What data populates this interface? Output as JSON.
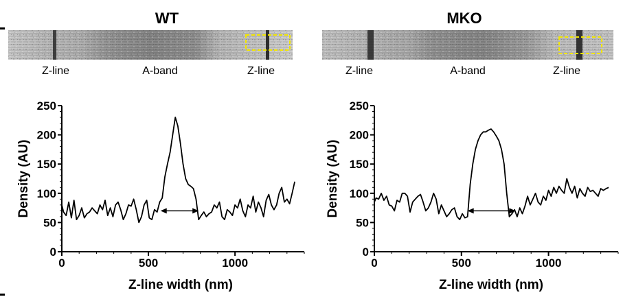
{
  "panels": [
    {
      "title": "WT",
      "image_labels": [
        "Z-line",
        "A-band",
        "Z-line"
      ],
      "highlight_color": "#f2e600"
    },
    {
      "title": "MKO",
      "image_labels": [
        "Z-line",
        "A-band",
        "Z-line"
      ],
      "highlight_color": "#f2e600"
    }
  ],
  "chart_data": [
    {
      "type": "line",
      "title": "WT",
      "xlabel": "Z-line width (nm)",
      "ylabel": "Density (AU)",
      "xlim": [
        0,
        1400
      ],
      "ylim": [
        0,
        250
      ],
      "xticks": [
        0,
        500,
        1000
      ],
      "yticks": [
        0,
        50,
        100,
        150,
        200,
        250
      ],
      "grid": false,
      "annotation": {
        "type": "double-arrow",
        "x_start": 570,
        "x_end": 790,
        "y": 70
      },
      "series": [
        {
          "name": "WT",
          "x": [
            0,
            10,
            25,
            40,
            55,
            70,
            85,
            100,
            115,
            130,
            145,
            160,
            175,
            190,
            205,
            220,
            235,
            250,
            265,
            280,
            295,
            310,
            325,
            340,
            355,
            370,
            385,
            400,
            415,
            430,
            445,
            460,
            475,
            490,
            505,
            520,
            535,
            550,
            565,
            580,
            595,
            610,
            625,
            640,
            655,
            670,
            685,
            700,
            715,
            730,
            745,
            760,
            775,
            790,
            805,
            820,
            835,
            850,
            865,
            880,
            895,
            910,
            925,
            940,
            955,
            970,
            985,
            1000,
            1015,
            1030,
            1045,
            1060,
            1075,
            1090,
            1105,
            1120,
            1135,
            1150,
            1165,
            1180,
            1195,
            1210,
            1225,
            1240,
            1255,
            1270,
            1285,
            1300,
            1315,
            1330,
            1345
          ],
          "values": [
            80,
            68,
            62,
            85,
            58,
            88,
            55,
            62,
            75,
            58,
            65,
            68,
            75,
            70,
            65,
            80,
            72,
            88,
            62,
            75,
            60,
            80,
            85,
            72,
            55,
            65,
            80,
            78,
            90,
            72,
            50,
            60,
            80,
            88,
            58,
            55,
            72,
            68,
            85,
            92,
            128,
            150,
            170,
            200,
            230,
            215,
            185,
            150,
            125,
            115,
            112,
            108,
            90,
            55,
            62,
            68,
            60,
            65,
            68,
            80,
            75,
            85,
            60,
            55,
            72,
            68,
            62,
            80,
            75,
            90,
            70,
            60,
            80,
            75,
            95,
            68,
            85,
            75,
            60,
            88,
            98,
            80,
            72,
            80,
            100,
            110,
            85,
            90,
            82,
            100,
            120
          ]
        }
      ]
    },
    {
      "type": "line",
      "title": "MKO",
      "xlabel": "Z-line width (nm)",
      "ylabel": "Density (AU)",
      "xlim": [
        0,
        1400
      ],
      "ylim": [
        0,
        250
      ],
      "xticks": [
        0,
        500,
        1000
      ],
      "yticks": [
        0,
        50,
        100,
        150,
        200,
        250
      ],
      "grid": false,
      "annotation": {
        "type": "double-arrow",
        "x_start": 535,
        "x_end": 810,
        "y": 70
      },
      "series": [
        {
          "name": "MKO",
          "x": [
            0,
            10,
            25,
            40,
            55,
            70,
            85,
            100,
            115,
            130,
            145,
            160,
            175,
            190,
            205,
            220,
            235,
            250,
            265,
            280,
            295,
            310,
            325,
            340,
            355,
            370,
            385,
            400,
            415,
            430,
            445,
            460,
            475,
            490,
            505,
            520,
            535,
            550,
            565,
            580,
            595,
            610,
            625,
            640,
            655,
            670,
            685,
            700,
            715,
            730,
            745,
            760,
            775,
            790,
            805,
            820,
            835,
            850,
            865,
            880,
            895,
            910,
            925,
            940,
            955,
            970,
            985,
            1000,
            1015,
            1030,
            1045,
            1060,
            1075,
            1090,
            1105,
            1120,
            1135,
            1150,
            1165,
            1180,
            1195,
            1210,
            1225,
            1240,
            1255,
            1270,
            1285,
            1300,
            1315,
            1330,
            1345
          ],
          "values": [
            85,
            92,
            90,
            100,
            88,
            95,
            80,
            78,
            70,
            88,
            85,
            100,
            100,
            95,
            68,
            85,
            90,
            95,
            98,
            85,
            70,
            75,
            85,
            100,
            90,
            65,
            80,
            70,
            60,
            65,
            72,
            75,
            60,
            55,
            65,
            58,
            60,
            115,
            150,
            175,
            190,
            200,
            205,
            205,
            208,
            210,
            205,
            198,
            190,
            175,
            150,
            100,
            60,
            65,
            72,
            60,
            75,
            65,
            78,
            95,
            80,
            90,
            100,
            85,
            80,
            95,
            88,
            105,
            95,
            110,
            100,
            112,
            105,
            100,
            125,
            110,
            100,
            112,
            92,
            108,
            100,
            95,
            110,
            103,
            105,
            100,
            95,
            108,
            105,
            108,
            110
          ]
        }
      ]
    }
  ]
}
